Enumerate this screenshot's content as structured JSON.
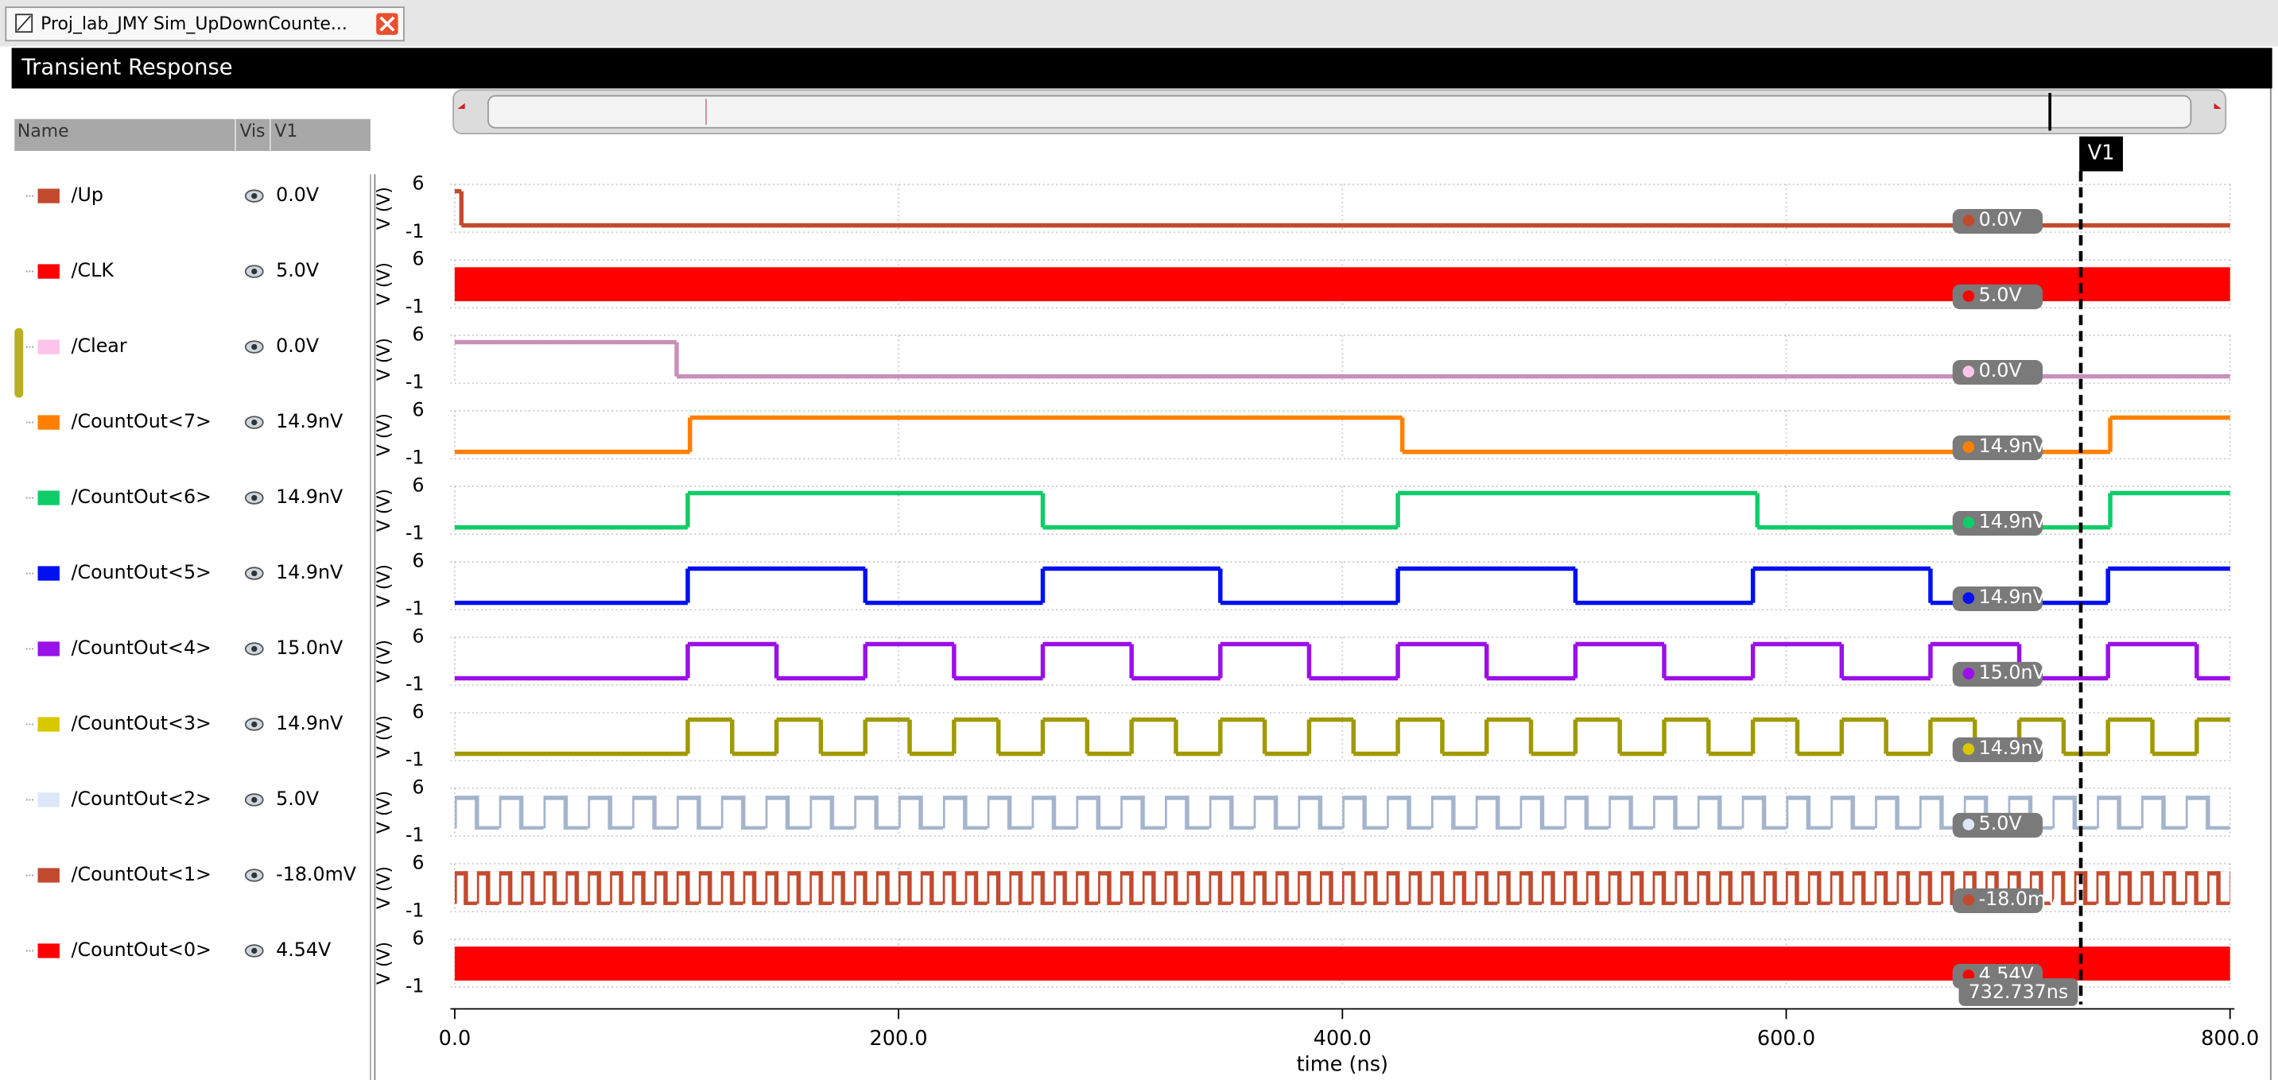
{
  "tab": {
    "title": "Proj_lab_JMY Sim_UpDownCounte..."
  },
  "panel": {
    "title": "Transient Response"
  },
  "table": {
    "headers": [
      "Name",
      "Vis",
      "V1"
    ]
  },
  "chart_data": {
    "type": "step",
    "xlabel": "time (ns)",
    "ylabel": "V (V)",
    "xlim": [
      0,
      800
    ],
    "xticks": [
      {
        "value": 0,
        "label": "0.0"
      },
      {
        "value": 200,
        "label": "200.0"
      },
      {
        "value": 400,
        "label": "400.0"
      },
      {
        "value": 600,
        "label": "600.0"
      },
      {
        "value": 800,
        "label": "800.0"
      }
    ],
    "ylim": [
      -1,
      6
    ],
    "yticks": [
      6,
      -1
    ],
    "grid": true,
    "cursor": {
      "name": "V1",
      "time": 732.737,
      "time_label": "732.737ns"
    },
    "series": [
      {
        "name": "/Up",
        "color": "#c24a2e",
        "swatch": "#c24a2e",
        "cursor_value": "0.0V",
        "x": [
          0,
          3
        ],
        "values": [
          5,
          0
        ]
      },
      {
        "name": "/CLK",
        "color": "#ff0000",
        "swatch": "#ff0000",
        "cursor_value": "5.0V",
        "x": [
          0
        ],
        "values": [
          0
        ],
        "toggle": true
      },
      {
        "name": "/Clear",
        "color": "#c890b8",
        "swatch": "#ffc4ec",
        "cursor_value": "0.0V",
        "x": [
          0,
          100
        ],
        "values": [
          5,
          0
        ]
      },
      {
        "name": "/CountOut<7>",
        "color": "#ff8000",
        "swatch": "#ff8000",
        "cursor_value": "14.9nV",
        "x": [
          0,
          106,
          427,
          746
        ],
        "values": [
          0,
          5,
          0,
          5
        ]
      },
      {
        "name": "/CountOut<6>",
        "color": "#10cc68",
        "swatch": "#10cc68",
        "cursor_value": "14.9nV",
        "x": [
          0,
          105,
          265,
          425,
          587,
          746
        ],
        "values": [
          0,
          5,
          0,
          5,
          0,
          5
        ]
      },
      {
        "name": "/CountOut<5>",
        "color": "#0010f0",
        "swatch": "#0010f0",
        "cursor_value": "14.9nV",
        "x": [
          0,
          105,
          185,
          265,
          345,
          425,
          505,
          585,
          665,
          745
        ],
        "values": [
          0,
          5,
          0,
          5,
          0,
          5,
          0,
          5,
          0,
          5
        ]
      },
      {
        "name": "/CountOut<4>",
        "color": "#9a10e8",
        "swatch": "#9a10e8",
        "cursor_value": "15.0nV",
        "x": [
          0,
          105,
          145,
          185,
          225,
          265,
          305,
          345,
          385,
          425,
          465,
          505,
          545,
          585,
          625,
          665,
          705,
          745,
          785
        ],
        "values": [
          0,
          5,
          0,
          5,
          0,
          5,
          0,
          5,
          0,
          5,
          0,
          5,
          0,
          5,
          0,
          5,
          0,
          5,
          0
        ]
      },
      {
        "name": "/CountOut<3>",
        "color": "#a09a00",
        "swatch": "#d8c800",
        "cursor_value": "14.9nV",
        "x": [
          0,
          105,
          125,
          145,
          165,
          185,
          205,
          225,
          245,
          265,
          285,
          305,
          325,
          345,
          365,
          385,
          405,
          425,
          445,
          465,
          485,
          505,
          525,
          545,
          565,
          585,
          605,
          625,
          645,
          665,
          685,
          705,
          725,
          745,
          765,
          785
        ],
        "values": [
          0,
          5,
          0,
          5,
          0,
          5,
          0,
          5,
          0,
          5,
          0,
          5,
          0,
          5,
          0,
          5,
          0,
          5,
          0,
          5,
          0,
          5,
          0,
          5,
          0,
          5,
          0,
          5,
          0,
          5,
          0,
          5,
          0,
          5,
          0,
          5
        ]
      },
      {
        "name": "/CountOut<2>",
        "color": "#a4b4cc",
        "swatch": "#dce8fa",
        "cursor_value": "5.0V",
        "x": [
          0
        ],
        "values": [
          0
        ],
        "toggle": true
      },
      {
        "name": "/CountOut<1>",
        "color": "#c24a2e",
        "swatch": "#c24a2e",
        "cursor_value": "-18.0mV",
        "x": [
          0
        ],
        "values": [
          0
        ],
        "toggle": true
      },
      {
        "name": "/CountOut<0>",
        "color": "#ff0000",
        "swatch": "#ff0000",
        "cursor_value": "4.54V",
        "x": [
          0
        ],
        "values": [
          0
        ],
        "toggle": true
      }
    ]
  }
}
